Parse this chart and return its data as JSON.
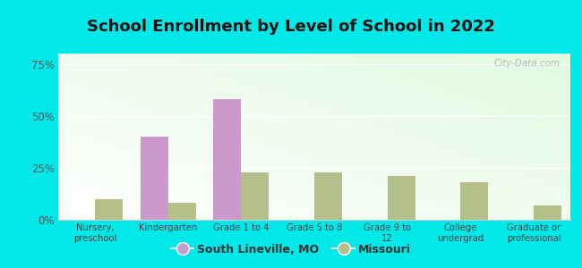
{
  "title": "School Enrollment by Level of School in 2022",
  "categories": [
    "Nursery,\npreschool",
    "Kindergarten",
    "Grade 1 to 4",
    "Grade 5 to 8",
    "Grade 9 to\n12",
    "College\nundergrad",
    "Graduate or\nprofessional"
  ],
  "south_lineville": [
    0,
    40,
    58,
    0,
    0,
    0,
    0
  ],
  "missouri": [
    10,
    8,
    23,
    23,
    21,
    18,
    7
  ],
  "south_lineville_color": "#cc99cc",
  "missouri_color": "#b5bf8a",
  "background_outer": "#00e8e8",
  "background_inner_top": "#d8eecc",
  "background_inner_bottom": "#f5fff5",
  "title_fontsize": 13,
  "ylim": [
    0,
    80
  ],
  "yticks": [
    0,
    25,
    50,
    75
  ],
  "ytick_labels": [
    "0%",
    "25%",
    "50%",
    "75%"
  ],
  "legend_south": "South Lineville, MO",
  "legend_missouri": "Missouri",
  "bar_width": 0.38,
  "watermark": "City-Data.com"
}
